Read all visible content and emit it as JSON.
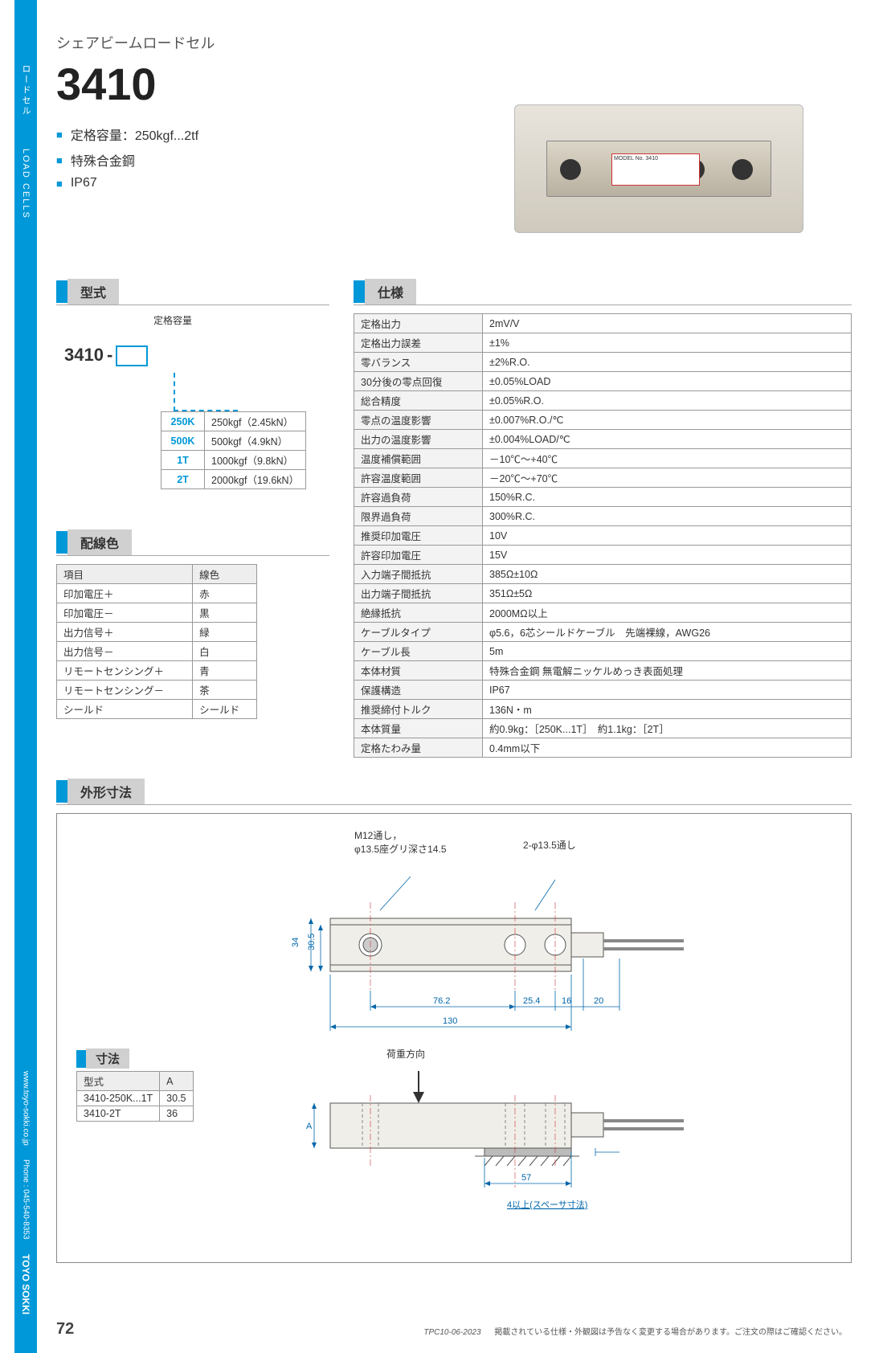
{
  "sideRail": {
    "jp": "ロードセル",
    "en": "LOAD CELLS",
    "url": "www.toyo-sokki.co.jp",
    "phone": "Phone : 045-540-8353",
    "brand": "TOYO SOKKI"
  },
  "header": {
    "subtitle": "シェアビームロードセル",
    "title": "3410",
    "features": [
      "定格容量：250kgf...2tf",
      "特殊合金鋼",
      "IP67"
    ],
    "productLabel": "MODEL No. 3410"
  },
  "sections": {
    "model": "型式",
    "wiring": "配線色",
    "spec": "仕様",
    "dims": "外形寸法",
    "dimSub": "寸法"
  },
  "modelLine": {
    "prefix": "3410",
    "dash": "-",
    "capLabel": "定格容量"
  },
  "capTable": {
    "rows": [
      {
        "code": "250K",
        "desc": "250kgf（2.45kN）"
      },
      {
        "code": "500K",
        "desc": "500kgf（4.9kN）"
      },
      {
        "code": "1T",
        "desc": "1000kgf（9.8kN）"
      },
      {
        "code": "2T",
        "desc": "2000kgf（19.6kN）"
      }
    ]
  },
  "wiring": {
    "head": [
      "項目",
      "線色"
    ],
    "rows": [
      [
        "印加電圧＋",
        "赤"
      ],
      [
        "印加電圧－",
        "黒"
      ],
      [
        "出力信号＋",
        "緑"
      ],
      [
        "出力信号－",
        "白"
      ],
      [
        "リモートセンシング＋",
        "青"
      ],
      [
        "リモートセンシング－",
        "茶"
      ],
      [
        "シールド",
        "シールド"
      ]
    ]
  },
  "spec": {
    "rows": [
      [
        "定格出力",
        "2mV/V"
      ],
      [
        "定格出力誤差",
        "±1%"
      ],
      [
        "零バランス",
        "±2%R.O."
      ],
      [
        "30分後の零点回復",
        "±0.05%LOAD"
      ],
      [
        "総合精度",
        "±0.05%R.O."
      ],
      [
        "零点の温度影響",
        "±0.007%R.O./℃"
      ],
      [
        "出力の温度影響",
        "±0.004%LOAD/℃"
      ],
      [
        "温度補償範囲",
        "－10℃〜+40℃"
      ],
      [
        "許容温度範囲",
        "－20℃〜+70℃"
      ],
      [
        "許容過負荷",
        "150%R.C."
      ],
      [
        "限界過負荷",
        "300%R.C."
      ],
      [
        "推奨印加電圧",
        "10V"
      ],
      [
        "許容印加電圧",
        "15V"
      ],
      [
        "入力端子間抵抗",
        "385Ω±10Ω"
      ],
      [
        "出力端子間抵抗",
        "351Ω±5Ω"
      ],
      [
        "絶縁抵抗",
        "2000MΩ以上"
      ],
      [
        "ケーブルタイプ",
        "φ5.6，6芯シールドケーブル　先端裸線，AWG26"
      ],
      [
        "ケーブル長",
        "5m"
      ],
      [
        "本体材質",
        "特殊合金鋼 無電解ニッケルめっき表面処理"
      ],
      [
        "保護構造",
        "IP67"
      ],
      [
        "推奨締付トルク",
        "136N・m"
      ],
      [
        "本体質量",
        "約0.9kg：［250K...1T］　約1.1kg：［2T］"
      ],
      [
        "定格たわみ量",
        "0.4mm以下"
      ]
    ]
  },
  "drawing": {
    "note1": "M12通し，",
    "note2": "φ13.5座グリ深さ14.5",
    "note3": "2-φ13.5通し",
    "loadDir": "荷重方向",
    "spacer": "4以上(スペーサ寸法)",
    "dims": {
      "w_76_2": "76.2",
      "w_25_4": "25.4",
      "w_16": "16",
      "w_20": "20",
      "w_130": "130",
      "h_34": "34",
      "h_30_5": "30.5",
      "w_57": "57",
      "A": "A"
    }
  },
  "dimTable": {
    "head": [
      "型式",
      "A"
    ],
    "rows": [
      [
        "3410-250K...1T",
        "30.5"
      ],
      [
        "3410-2T",
        "36"
      ]
    ]
  },
  "footer": {
    "code": "TPC10-06-2023",
    "disclaimer": "掲載されている仕様・外観図は予告なく変更する場合があります。ご注文の際はご確認ください。",
    "page": "72"
  },
  "colors": {
    "accent": "#0098d8",
    "headerGray": "#d0d0d0",
    "border": "#999999",
    "dimBlue": "#0066aa"
  }
}
